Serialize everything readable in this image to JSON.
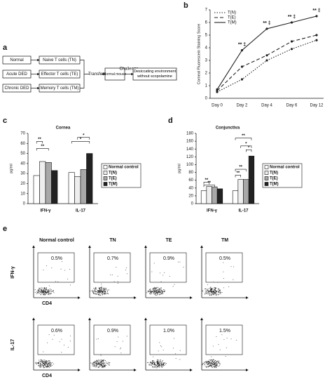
{
  "diagram": {
    "label": "a",
    "nodes": [
      "Normal",
      "Acute DED",
      "Chronic DED",
      "Naive T cells (TN)",
      "Effector T cells (TE)",
      "Memory T cells (TM)",
      "Transfer",
      "Normal mouse",
      "Challenge",
      "Desiccating environment without scopolamine"
    ]
  },
  "chart_data": [
    {
      "type": "line",
      "label": "b",
      "y_label": "Corneal Fluorescein Staining Score",
      "categories": [
        "Day 0",
        "Day 2",
        "Day 4",
        "Day 6",
        "Day 12"
      ],
      "series": [
        {
          "name": "T(N)",
          "color": "#222222",
          "line_style": "dotted",
          "values": [
            0.5,
            1.5,
            3.0,
            3.9,
            4.6
          ]
        },
        {
          "name": "T(E)",
          "color": "#222222",
          "line_style": "dashed",
          "values": [
            0.6,
            2.5,
            3.4,
            4.5,
            5.0
          ]
        },
        {
          "name": "T(M)",
          "color": "#222222",
          "line_style": "solid",
          "values": [
            0.7,
            3.8,
            5.5,
            6.0,
            6.5
          ]
        }
      ],
      "annotations": [
        "** ‡",
        "** ‡",
        "** ‡",
        "** ‡"
      ],
      "ylim": [
        0,
        7
      ],
      "yticks": [
        0,
        1,
        2,
        3,
        4,
        5,
        6,
        7
      ],
      "legend": "top-left"
    },
    {
      "type": "bar",
      "label": "c",
      "title": "Cornea",
      "y_label": "pg/ml",
      "categories": [
        "IFN-γ",
        "IL-17"
      ],
      "series": [
        {
          "name": "Normal control",
          "color": "#ffffff",
          "values": [
            28,
            31
          ]
        },
        {
          "name": "T(N)",
          "color": "#eeeeee",
          "values": [
            42,
            27
          ]
        },
        {
          "name": "T(E)",
          "color": "#a8a8a8",
          "values": [
            41,
            34
          ]
        },
        {
          "name": "T(M)",
          "color": "#222222",
          "values": [
            33,
            50
          ]
        }
      ],
      "annotations": [
        "**",
        "**",
        "*",
        "*"
      ],
      "ylim": [
        0,
        70
      ],
      "yticks": [
        0,
        10,
        20,
        30,
        40,
        50,
        60,
        70
      ],
      "legend": "right"
    },
    {
      "type": "bar",
      "label": "d",
      "title": "Conjunctiva",
      "y_label": "pg/ml",
      "categories": [
        "IFN-γ",
        "IL-17"
      ],
      "series": [
        {
          "name": "Normal control",
          "color": "#ffffff",
          "values": [
            33,
            33
          ]
        },
        {
          "name": "T(N)",
          "color": "#eeeeee",
          "values": [
            44,
            62
          ]
        },
        {
          "name": "T(E)",
          "color": "#a8a8a8",
          "values": [
            43,
            62
          ]
        },
        {
          "name": "T(M)",
          "color": "#222222",
          "values": [
            38,
            122
          ]
        }
      ],
      "annotations": [
        "**",
        "**",
        "**",
        "**",
        "*",
        "*",
        "**"
      ],
      "ylim": [
        0,
        180
      ],
      "yticks": [
        0,
        20,
        40,
        60,
        80,
        100,
        120,
        140,
        160,
        180
      ],
      "legend": "right"
    }
  ],
  "flow": {
    "label": "e",
    "columns": [
      "Normal control",
      "TN",
      "TE",
      "TM"
    ],
    "rows": [
      {
        "name": "IFN-γ",
        "percents": [
          "0.5%",
          "0.7%",
          "0.9%",
          "0.5%"
        ]
      },
      {
        "name": "IL-17",
        "percents": [
          "0.6%",
          "0.9%",
          "1.0%",
          "1.5%"
        ]
      }
    ],
    "x_label": "CD4"
  }
}
